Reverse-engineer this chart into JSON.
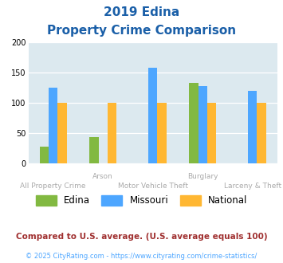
{
  "title_line1": "2019 Edina",
  "title_line2": "Property Crime Comparison",
  "categories": [
    "All Property Crime",
    "Arson",
    "Motor Vehicle Theft",
    "Burglary",
    "Larceny & Theft"
  ],
  "x_labels_top": [
    "",
    "Arson",
    "",
    "Burglary",
    ""
  ],
  "x_labels_bottom": [
    "All Property Crime",
    "",
    "Motor Vehicle Theft",
    "",
    "Larceny & Theft"
  ],
  "edina": [
    27,
    43,
    null,
    132,
    null
  ],
  "missouri": [
    125,
    null,
    157,
    127,
    120
  ],
  "national": [
    100,
    100,
    100,
    100,
    100
  ],
  "edina_color": "#82b941",
  "missouri_color": "#4da6ff",
  "national_color": "#ffb732",
  "background_color": "#dce9ef",
  "ylim": [
    0,
    200
  ],
  "yticks": [
    0,
    50,
    100,
    150,
    200
  ],
  "footnote1": "Compared to U.S. average. (U.S. average equals 100)",
  "footnote2": "© 2025 CityRating.com - https://www.cityrating.com/crime-statistics/",
  "title_color": "#1a5fa8",
  "footnote1_color": "#a03030",
  "footnote2_color": "#4da6ff",
  "xlabel_color": "#aaaaaa",
  "bar_width": 0.18
}
